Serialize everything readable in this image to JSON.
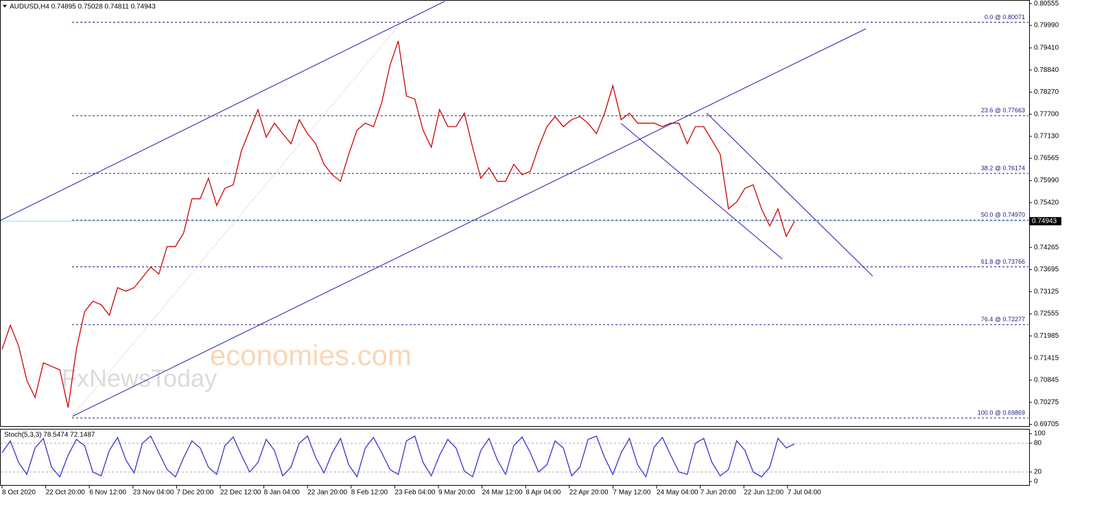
{
  "header": "AUDUSD,H4  0.74895 0.75028 0.74811 0.74943",
  "watermark": {
    "brand": "economies.com",
    "sub": "FxNewsToday"
  },
  "chart_data": [
    {
      "type": "line",
      "color": "#cc0000",
      "ylim": [
        0.6966,
        0.8061
      ],
      "yticks": [
        0.80555,
        {
          "value": 0.7999,
          "label": "0.79990"
        },
        {
          "value": 0.7941,
          "label": "0.79410"
        },
        {
          "value": 0.7884,
          "label": "0.78840"
        },
        {
          "value": 0.7827,
          "label": "0.78270"
        },
        {
          "value": 0.777,
          "label": "0.77700"
        },
        {
          "value": 0.7713,
          "label": "0.77130"
        },
        0.76565,
        {
          "value": 0.7599,
          "label": "0.75990"
        },
        {
          "value": 0.7542,
          "label": "0.75420"
        },
        0.74265,
        0.73695,
        0.73125,
        0.72555,
        0.71985,
        0.71415,
        0.70845,
        0.70275,
        0.69705
      ],
      "current_price": 0.74943,
      "fib_levels": [
        {
          "value": 0.80071,
          "label": "0.0 @ 0.80071"
        },
        {
          "value": 0.77663,
          "label": "23.6 @ 0.77663"
        },
        {
          "value": 0.76174,
          "label": "38.2 @ 0.76174"
        },
        {
          "value": 0.7497,
          "label": "50.0 @ 0.74970"
        },
        {
          "value": 0.73766,
          "label": "61.8 @ 0.73766"
        },
        {
          "value": 0.72277,
          "label": "76.4 @ 0.72277"
        },
        {
          "value": 0.69869,
          "label": "100.0 @ 0.69869"
        }
      ],
      "values": [
        0.7164,
        0.7226,
        0.7173,
        0.7084,
        0.704,
        0.7129,
        0.712,
        0.7111,
        0.7014,
        0.7164,
        0.7261,
        0.7288,
        0.7279,
        0.7252,
        0.7323,
        0.7314,
        0.7323,
        0.7349,
        0.7376,
        0.7358,
        0.7429,
        0.7429,
        0.7464,
        0.7552,
        0.7552,
        0.7605,
        0.7535,
        0.7579,
        0.7588,
        0.7676,
        0.7729,
        0.7782,
        0.7711,
        0.7747,
        0.772,
        0.7694,
        0.7756,
        0.772,
        0.7694,
        0.7641,
        0.7614,
        0.7597,
        0.7667,
        0.7729,
        0.7747,
        0.7738,
        0.78,
        0.7897,
        0.7959,
        0.7817,
        0.7809,
        0.7729,
        0.7685,
        0.7782,
        0.7738,
        0.7738,
        0.7773,
        0.7685,
        0.7605,
        0.7632,
        0.7597,
        0.7597,
        0.7641,
        0.7614,
        0.7623,
        0.7685,
        0.7738,
        0.7764,
        0.7738,
        0.7756,
        0.7764,
        0.7747,
        0.772,
        0.7773,
        0.7844,
        0.7756,
        0.7773,
        0.7747,
        0.7747,
        0.7747,
        0.7738,
        0.7747,
        0.7747,
        0.7694,
        0.7738,
        0.7738,
        0.7703,
        0.7667,
        0.7526,
        0.7544,
        0.7579,
        0.7588,
        0.7526,
        0.7482,
        0.7526,
        0.7455,
        0.7494
      ]
    },
    {
      "type": "line",
      "title": "Stoch(5,3,3) 78.5474 72.1487",
      "color": "#3333cc",
      "ylim": [
        0,
        100
      ],
      "yticks": [
        100,
        80,
        20,
        0
      ],
      "grid": true,
      "xticks": [
        "8 Oct 2020",
        "22 Oct 20:00",
        "6 Nov 12:00",
        "23 Nov 04:00",
        "7 Dec 20:00",
        "22 Dec 12:00",
        "8 Jan 04:00",
        "22 Jan 20:00",
        "8 Feb 12:00",
        "23 Feb 04:00",
        "9 Mar 20:00",
        "24 Mar 12:00",
        "8 Apr 04:00",
        "22 Apr 20:00",
        "7 May 12:00",
        "24 May 04:00",
        "7 Jun 20:00",
        "22 Jun 12:00",
        "7 Jul 04:00"
      ],
      "values": [
        60,
        85,
        40,
        15,
        70,
        90,
        30,
        10,
        55,
        88,
        75,
        20,
        12,
        65,
        92,
        45,
        18,
        80,
        95,
        60,
        25,
        10,
        50,
        85,
        70,
        30,
        15,
        75,
        93,
        55,
        20,
        40,
        88,
        65,
        12,
        30,
        80,
        95,
        50,
        18,
        60,
        90,
        35,
        10,
        70,
        92,
        60,
        25,
        15,
        85,
        95,
        40,
        12,
        55,
        88,
        70,
        22,
        10,
        65,
        90,
        45,
        15,
        75,
        93,
        60,
        20,
        35,
        85,
        70,
        12,
        30,
        88,
        95,
        50,
        15,
        60,
        90,
        35,
        10,
        72,
        92,
        55,
        20,
        15,
        80,
        90,
        40,
        12,
        25,
        85,
        65,
        20,
        10,
        30,
        90,
        70,
        78.5
      ]
    }
  ]
}
